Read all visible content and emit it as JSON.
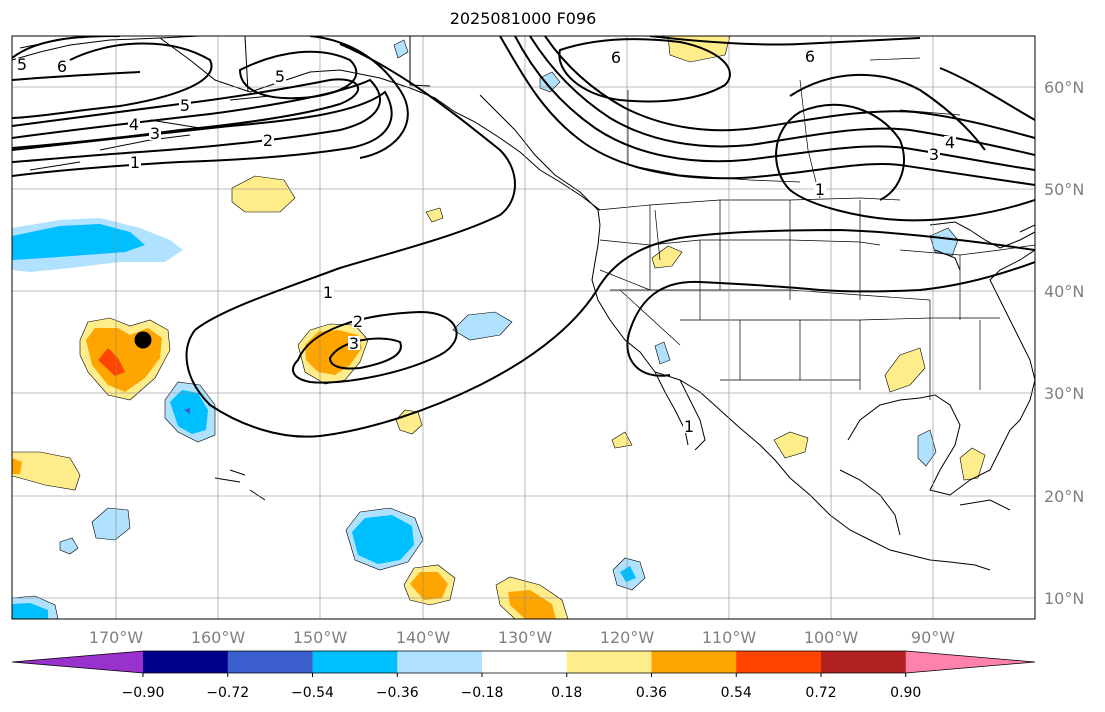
{
  "title": "2025081000 F096",
  "lon_ticks": [
    "170°W",
    "160°W",
    "150°W",
    "140°W",
    "130°W",
    "120°W",
    "110°W",
    "100°W",
    "90°W"
  ],
  "lat_ticks": [
    "60°N",
    "50°N",
    "40°N",
    "30°N",
    "20°N",
    "10°N"
  ],
  "colorbar": {
    "labels": [
      "−0.90",
      "−0.72",
      "−0.54",
      "−0.36",
      "−0.18",
      "0.18",
      "0.36",
      "0.54",
      "0.72",
      "0.90"
    ],
    "colors": [
      "#9932cc",
      "#00008b",
      "#3a5fcd",
      "#00bfff",
      "#b0e2ff",
      "#ffffff",
      "#ffec8b",
      "#ffa500",
      "#ff4500",
      "#b22222",
      "#ff82ab"
    ]
  },
  "contour_labels": [
    "5",
    "6",
    "5",
    "5",
    "4",
    "3",
    "2",
    "1",
    "6",
    "6",
    "1",
    "3",
    "4",
    "1",
    "2",
    "3",
    "1"
  ],
  "marker": "black-dot"
}
